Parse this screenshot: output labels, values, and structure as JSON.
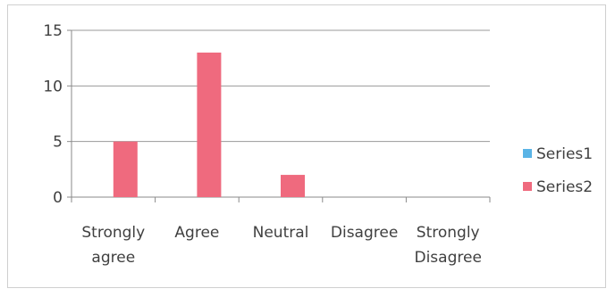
{
  "chart_data": {
    "type": "bar",
    "categories": [
      [
        "Strongly",
        "agree"
      ],
      [
        "Agree"
      ],
      [
        "Neutral"
      ],
      [
        "Disagree"
      ],
      [
        "Strongly",
        "Disagree"
      ]
    ],
    "series": [
      {
        "name": "Series1",
        "values": [
          0,
          0,
          0,
          0,
          0
        ],
        "color": "#5ab4e6"
      },
      {
        "name": "Series2",
        "values": [
          5,
          13,
          2,
          0,
          0
        ],
        "color": "#ef6a7e"
      }
    ],
    "yticks": [
      0,
      5,
      10,
      15
    ],
    "ylim": [
      0,
      15
    ],
    "grid": true,
    "legend": "right"
  }
}
